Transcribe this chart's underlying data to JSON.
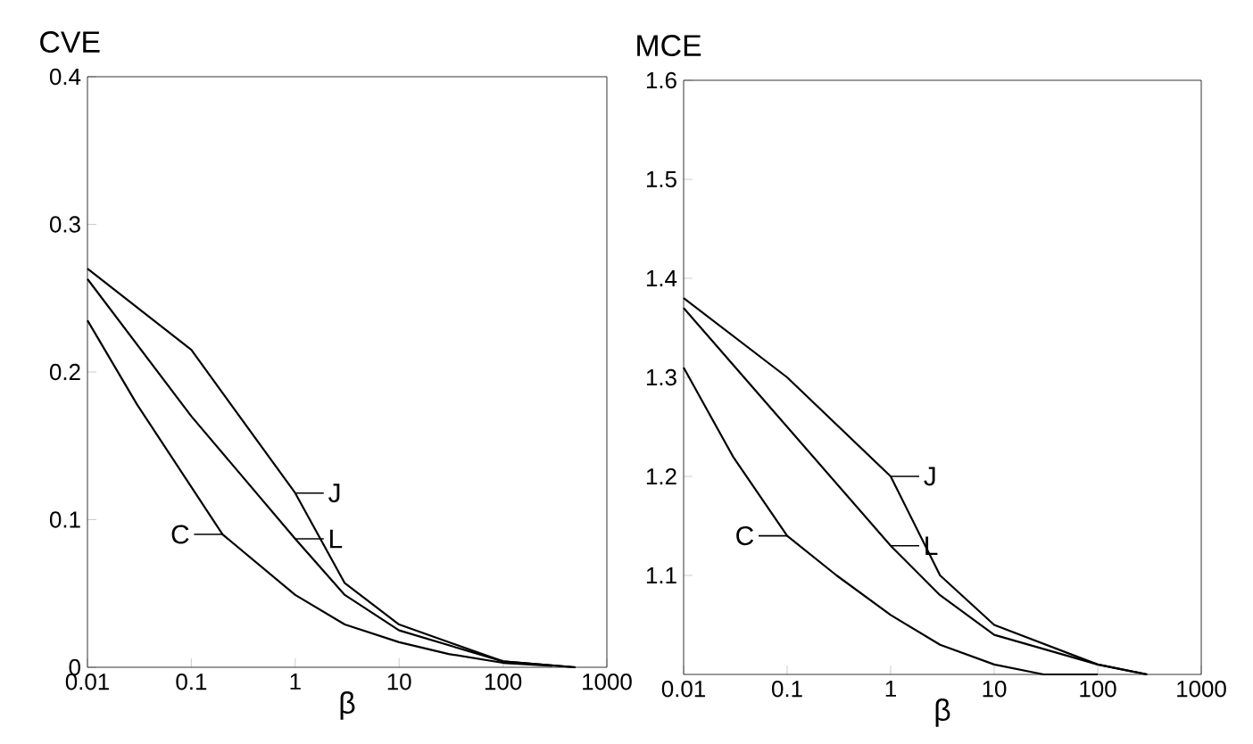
{
  "chart_data": [
    {
      "type": "line",
      "ylabel": "CVE",
      "xlabel": "β",
      "log": "x",
      "xlim": [
        0.01,
        1000
      ],
      "ylim": [
        0,
        0.4
      ],
      "xticks": [
        0.01,
        0.1,
        1,
        10,
        100,
        1000
      ],
      "yticks": [
        0,
        0.1,
        0.2,
        0.3,
        0.4
      ],
      "grid": false,
      "legend": "center",
      "marker": "none",
      "line_style": "solid",
      "series": [
        {
          "name": "J",
          "color": "#000000",
          "x": [
            0.01,
            0.1,
            1,
            3,
            10,
            100,
            500
          ],
          "values": [
            0.27,
            0.215,
            0.118,
            0.057,
            0.029,
            0.004,
            0
          ]
        },
        {
          "name": "L",
          "color": "#000000",
          "x": [
            0.01,
            0.1,
            1,
            3,
            10,
            100,
            500
          ],
          "values": [
            0.263,
            0.17,
            0.087,
            0.049,
            0.025,
            0.004,
            0
          ]
        },
        {
          "name": "C",
          "color": "#000000",
          "x": [
            0.01,
            0.03,
            0.2,
            1,
            3,
            10,
            30,
            100,
            300
          ],
          "values": [
            0.235,
            0.178,
            0.09,
            0.049,
            0.029,
            0.017,
            0.009,
            0.003,
            0.001
          ]
        }
      ]
    },
    {
      "type": "line",
      "ylabel": "MCE",
      "xlabel": "β",
      "log": "x",
      "xlim": [
        0.01,
        1000
      ],
      "ylim": [
        1,
        1.6
      ],
      "xticks": [
        0.01,
        0.1,
        1,
        10,
        100,
        1000
      ],
      "yticks": [
        1.1,
        1.2,
        1.3,
        1.4,
        1.5,
        1.6
      ],
      "grid": false,
      "legend": "center",
      "marker": "none",
      "line_style": "solid",
      "series": [
        {
          "name": "J",
          "color": "#000000",
          "x": [
            0.01,
            0.1,
            1,
            3,
            10,
            100,
            300
          ],
          "values": [
            1.38,
            1.3,
            1.2,
            1.1,
            1.05,
            1.01,
            1.0
          ]
        },
        {
          "name": "L",
          "color": "#000000",
          "x": [
            0.01,
            0.1,
            1,
            3,
            10,
            100,
            300
          ],
          "values": [
            1.37,
            1.25,
            1.13,
            1.08,
            1.04,
            1.01,
            1.0
          ]
        },
        {
          "name": "C",
          "color": "#000000",
          "x": [
            0.01,
            0.03,
            0.1,
            0.3,
            1,
            3,
            10,
            30,
            100
          ],
          "values": [
            1.31,
            1.22,
            1.14,
            1.1,
            1.06,
            1.03,
            1.01,
            1.0,
            1.0
          ]
        }
      ]
    }
  ]
}
